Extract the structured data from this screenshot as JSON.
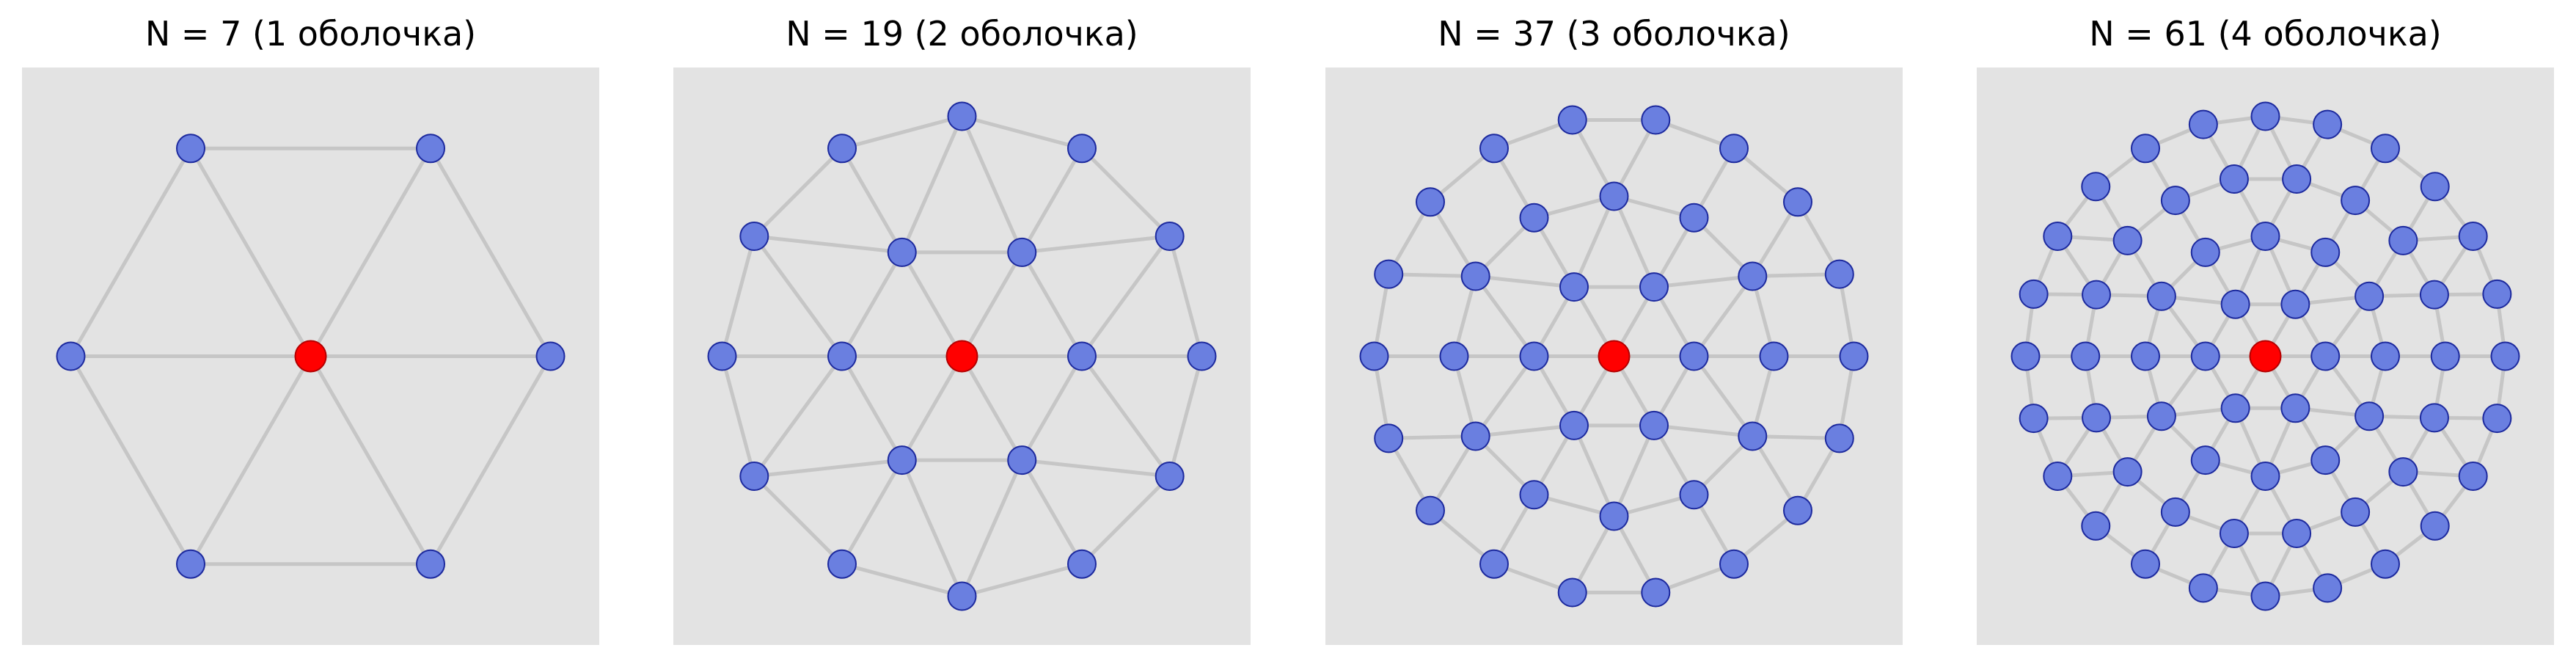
{
  "colors": {
    "panel_bg": "#e3e3e3",
    "edge": "#c6c6c6",
    "node_fill": "#6a7fe0",
    "node_stroke": "#1d2a9e",
    "center_fill": "#ff0000",
    "center_stroke": "#b40000"
  },
  "panels": [
    {
      "title": "N = 7 (1 оболочка)",
      "n": 7,
      "shells": 1
    },
    {
      "title": "N = 19 (2 оболочка)",
      "n": 19,
      "shells": 2
    },
    {
      "title": "N = 37 (3 оболочка)",
      "n": 37,
      "shells": 3
    },
    {
      "title": "N = 61 (4 оболочка)",
      "n": 61,
      "shells": 4
    }
  ]
}
